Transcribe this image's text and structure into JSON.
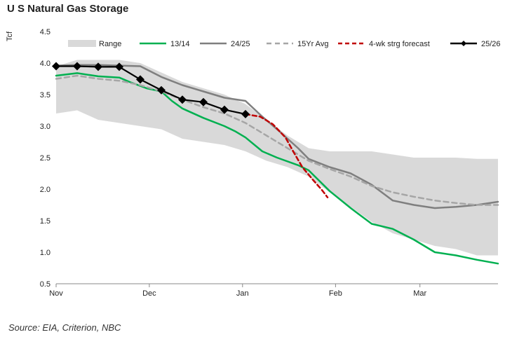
{
  "chart_data": {
    "type": "line",
    "title": "U S Natural Gas Storage",
    "ylabel": "Tcf",
    "xlabel": "",
    "ylim": [
      0.5,
      4.5
    ],
    "yticks": [
      "0.5",
      "1.0",
      "1.5",
      "2.0",
      "2.5",
      "3.0",
      "3.5",
      "4.0",
      "4.5"
    ],
    "xlim": [
      0,
      21
    ],
    "xticks": [
      {
        "label": "Nov",
        "x": 0
      },
      {
        "label": "Dec",
        "x": 4.43
      },
      {
        "label": "Jan",
        "x": 8.86
      },
      {
        "label": "Feb",
        "x": 13.28
      },
      {
        "label": "Mar",
        "x": 17.29
      }
    ],
    "legend_position": "top",
    "source": "Source: EIA, Criterion, NBC",
    "range": {
      "name": "Range",
      "color": "#d9d9d9",
      "x": [
        0,
        1,
        2,
        3,
        4,
        5,
        6,
        7,
        8,
        9,
        10,
        11,
        12,
        13,
        14,
        15,
        16,
        17,
        18,
        19,
        20,
        21
      ],
      "upper": [
        3.95,
        4.05,
        4.05,
        4.05,
        4.0,
        3.85,
        3.7,
        3.6,
        3.5,
        3.35,
        3.1,
        2.85,
        2.65,
        2.6,
        2.6,
        2.6,
        2.55,
        2.5,
        2.5,
        2.5,
        2.48,
        2.48
      ],
      "lower": [
        3.2,
        3.25,
        3.1,
        3.05,
        3.0,
        2.95,
        2.8,
        2.75,
        2.7,
        2.6,
        2.45,
        2.35,
        2.2,
        1.95,
        1.72,
        1.48,
        1.3,
        1.2,
        1.1,
        1.05,
        0.95,
        0.95
      ]
    },
    "series": [
      {
        "name": "13/14",
        "color": "#00b050",
        "dash": "",
        "markers": false,
        "x": [
          0,
          1,
          2,
          3,
          3.5,
          4.3,
          5,
          5.5,
          6,
          7,
          8,
          8.5,
          9,
          9.8,
          10.5,
          11.5,
          12,
          13,
          14,
          15,
          16,
          17,
          18,
          19,
          20,
          21
        ],
        "values": [
          3.8,
          3.84,
          3.79,
          3.77,
          3.7,
          3.6,
          3.55,
          3.4,
          3.28,
          3.13,
          3.0,
          2.92,
          2.82,
          2.6,
          2.5,
          2.38,
          2.3,
          1.97,
          1.7,
          1.45,
          1.37,
          1.2,
          1.0,
          0.95,
          0.88,
          0.82
        ]
      },
      {
        "name": "24/25",
        "color": "#7f7f7f",
        "dash": "",
        "markers": false,
        "x": [
          0,
          1,
          2,
          3,
          4,
          5,
          6,
          7,
          8,
          9,
          9.8,
          10.5,
          11.5,
          12,
          13,
          14,
          15,
          16,
          17,
          18,
          19,
          20,
          21
        ],
        "values": [
          3.96,
          3.97,
          3.97,
          3.96,
          3.95,
          3.78,
          3.65,
          3.55,
          3.45,
          3.4,
          3.15,
          2.95,
          2.65,
          2.48,
          2.35,
          2.25,
          2.07,
          1.82,
          1.75,
          1.7,
          1.72,
          1.75,
          1.8
        ]
      },
      {
        "name": "15Yr Avg",
        "color": "#a6a6a6",
        "dash": "7,5",
        "markers": false,
        "x": [
          0,
          1,
          2,
          3,
          4,
          5,
          6,
          7,
          8,
          9,
          10,
          11,
          12,
          13,
          14,
          15,
          16,
          17,
          18,
          19,
          20,
          21
        ],
        "values": [
          3.75,
          3.8,
          3.75,
          3.72,
          3.65,
          3.55,
          3.42,
          3.3,
          3.2,
          3.05,
          2.85,
          2.65,
          2.45,
          2.32,
          2.2,
          2.05,
          1.95,
          1.88,
          1.82,
          1.78,
          1.75,
          1.75
        ]
      },
      {
        "name": "4-wk strg forecast",
        "color": "#c00000",
        "dash": "6,4",
        "markers": false,
        "x": [
          9.0,
          9.7,
          10.3,
          10.9,
          11.3,
          11.7,
          12.2,
          12.6,
          12.9
        ],
        "values": [
          3.19,
          3.15,
          3.03,
          2.82,
          2.58,
          2.35,
          2.15,
          2.0,
          1.87
        ]
      },
      {
        "name": "25/26",
        "color": "#000000",
        "dash": "",
        "markers": true,
        "x": [
          0,
          1,
          2,
          3,
          4,
          5,
          6,
          7,
          8,
          9
        ],
        "values": [
          3.95,
          3.95,
          3.94,
          3.94,
          3.74,
          3.57,
          3.42,
          3.38,
          3.26,
          3.19
        ]
      }
    ]
  }
}
